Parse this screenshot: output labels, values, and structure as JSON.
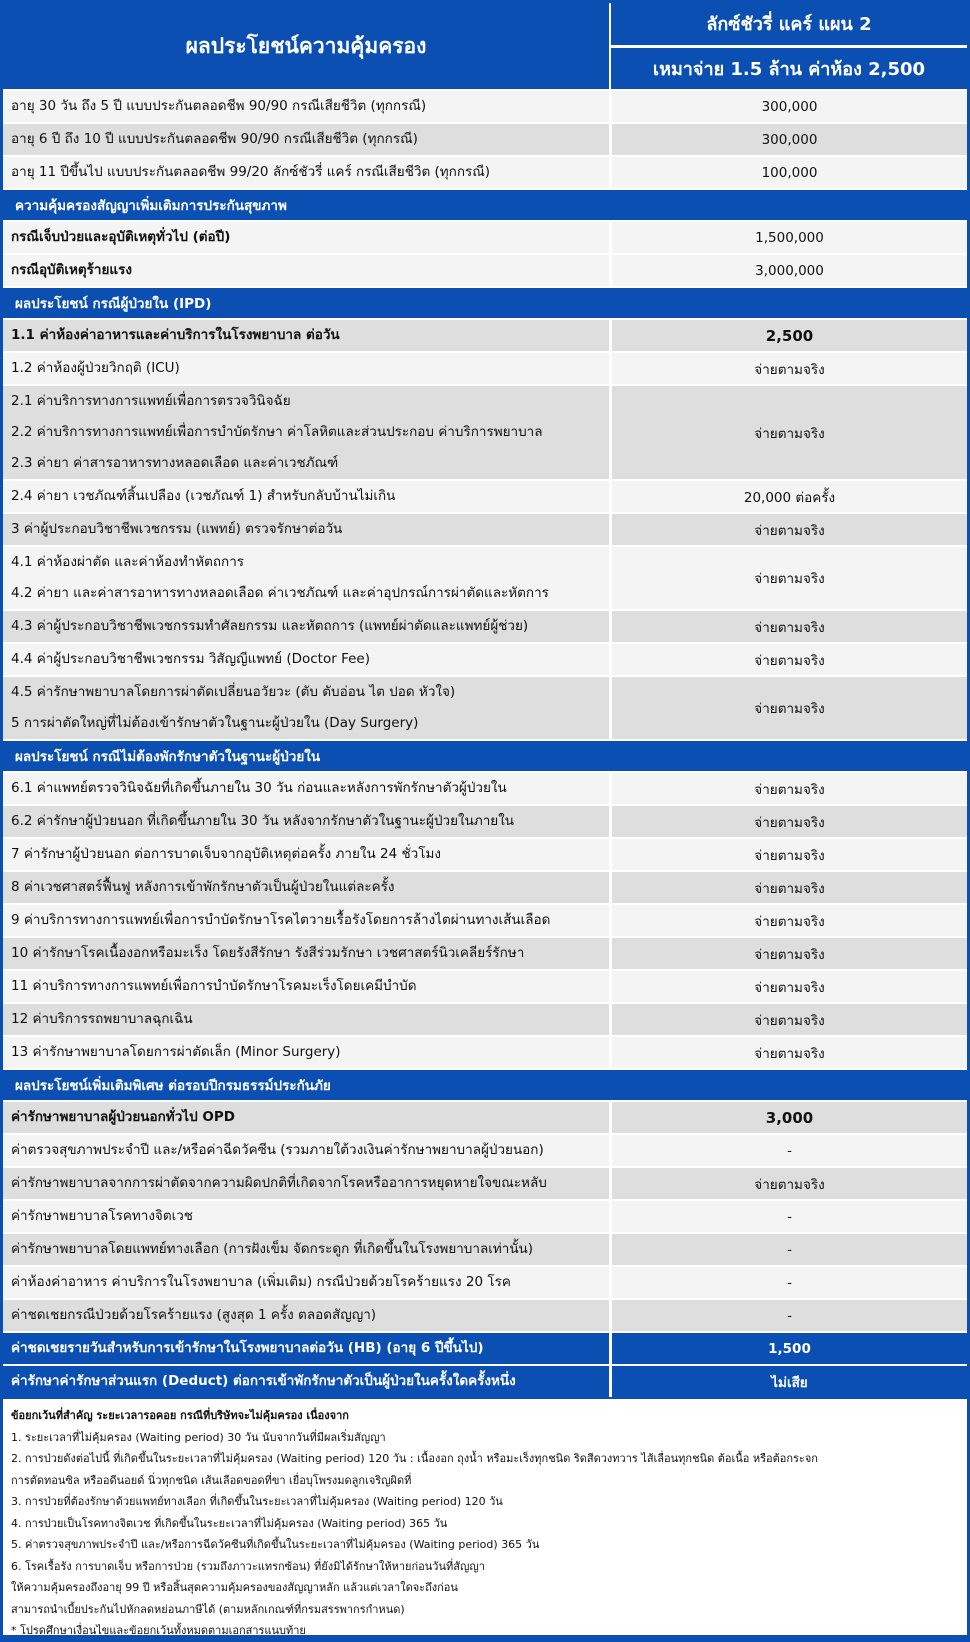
{
  "header": {
    "title": "ผลประโยชน์ความคุ้มครอง",
    "plan": "ลักซ์ชัวรี่ แคร์ แผน 2",
    "plan_detail": "เหมาจ่าย 1.5 ล้าน ค่าห้อง 2,500"
  },
  "blocks": [
    {
      "type": "rows",
      "rows": [
        {
          "lines": [
            "อายุ 30 วัน ถึง 5 ปี แบบประกันตลอดชีพ 90/90 กรณีเสียชีวิต (ทุกกรณี)"
          ],
          "value": "300,000",
          "bg": "a"
        },
        {
          "lines": [
            "อายุ 6 ปี ถึง 10 ปี   แบบประกันตลอดชีพ 90/90 กรณีเสียชีวิต (ทุกกรณี)"
          ],
          "value": "300,000",
          "bg": "b"
        },
        {
          "lines": [
            "อายุ 11 ปีขึ้นไป      แบบประกันตลอดชีพ 99/20 ลักซ์ชัวรี่ แคร์ กรณีเสียชีวิต (ทุกกรณี)"
          ],
          "value": "100,000",
          "bg": "a"
        }
      ]
    },
    {
      "type": "section",
      "title": "ความคุ้มครองสัญญาเพิ่มเติมการประกันสุขภาพ"
    },
    {
      "type": "rows",
      "rows": [
        {
          "lines": [
            "กรณีเจ็บป่วยและอุบัติเหตุทั่วไป (ต่อปี)"
          ],
          "value": "1,500,000",
          "bg": "a",
          "bold_label": true
        },
        {
          "lines": [
            "กรณีอุบัติเหตุร้ายแรง"
          ],
          "value": "3,000,000",
          "bg": "a",
          "bold_label": true
        }
      ]
    },
    {
      "type": "section",
      "title": "ผลประโยชน์ กรณีผู้ป่วยใน (IPD)"
    },
    {
      "type": "rows",
      "rows": [
        {
          "lines": [
            "1.1 ค่าห้องค่าอาหารและค่าบริการในโรงพยาบาล ต่อวัน"
          ],
          "value": "2,500",
          "bg": "b",
          "bold": true
        },
        {
          "lines": [
            "1.2 ค่าห้องผู้ป่วยวิกฤติ (ICU)"
          ],
          "value": "จ่ายตามจริง",
          "bg": "a"
        },
        {
          "lines": [
            "2.1 ค่าบริการทางการแพทย์เพื่อการตรวจวินิจฉัย",
            "2.2 ค่าบริการทางการแพทย์เพื่อการบำบัดรักษา ค่าโลหิตและส่วนประกอบ ค่าบริการพยาบาล",
            "2.3 ค่ายา ค่าสารอาหารทางหลอดเลือด และค่าเวชภัณฑ์"
          ],
          "value": "จ่ายตามจริง",
          "bg": "b"
        },
        {
          "lines": [
            "2.4 ค่ายา เวชภัณฑ์สิ้นเปลือง (เวชภัณฑ์ 1) สำหรับกลับบ้านไม่เกิน"
          ],
          "value": "20,000 ต่อครั้ง",
          "bg": "a"
        },
        {
          "lines": [
            "3 ค่าผู้ประกอบวิชาชีพเวชกรรม (แพทย์) ตรวจรักษาต่อวัน"
          ],
          "value": "จ่ายตามจริง",
          "bg": "b"
        },
        {
          "lines": [
            "4.1 ค่าห้องผ่าตัด และค่าห้องทำหัตถการ",
            "4.2 ค่ายา และค่าสารอาหารทางหลอดเลือด ค่าเวชภัณฑ์ และค่าอุปกรณ์การผ่าตัดและหัตการ"
          ],
          "value": "จ่ายตามจริง",
          "bg": "a"
        },
        {
          "lines": [
            "4.3 ค่าผู้ประกอบวิชาชีพเวชกรรมทำศัลยกรรม และหัตถการ (แพทย์ผ่าตัดและแพทย์ผู้ช่วย)"
          ],
          "value": "จ่ายตามจริง",
          "bg": "b"
        },
        {
          "lines": [
            "4.4 ค่าผู้ประกอบวิชาชีพเวชกรรม วิสัญญีแพทย์ (Doctor Fee)"
          ],
          "value": "จ่ายตามจริง",
          "bg": "a"
        },
        {
          "lines": [
            "4.5 ค่ารักษาพยาบาลโดยการผ่าตัดเปลี่ยนอวัยวะ (ตับ ตับอ่อน ไต ปอด หัวใจ)",
            "5 การผ่าตัดใหญ่ที่ไม่ต้องเข้ารักษาตัวในฐานะผู้ป่วยใน (Day Surgery)"
          ],
          "value": "จ่ายตามจริง",
          "bg": "b"
        }
      ]
    },
    {
      "type": "section",
      "title": "ผลประโยชน์ กรณีไม่ต้องพักรักษาตัวในฐานะผู้ป่วยใน"
    },
    {
      "type": "rows",
      "rows": [
        {
          "lines": [
            "6.1 ค่าแพทย์ตรวจวินิจฉัยที่เกิดขึ้นภายใน 30 วัน ก่อนและหลังการพักรักษาตัวผู้ป่วยใน"
          ],
          "value": "จ่ายตามจริง",
          "bg": "a"
        },
        {
          "lines": [
            "6.2 ค่ารักษาผู้ป่วยนอก ที่เกิดขึ้นภายใน 30 วัน หลังจากรักษาตัวในฐานะผู้ป่วยในภายใน"
          ],
          "value": "จ่ายตามจริง",
          "bg": "b"
        },
        {
          "lines": [
            "7 ค่ารักษาผู้ป่วยนอก ต่อการบาดเจ็บจากอุบัติเหตุต่อครั้ง ภายใน 24 ชั่วโมง"
          ],
          "value": "จ่ายตามจริง",
          "bg": "a"
        },
        {
          "lines": [
            "8 ค่าเวชศาสตร์ฟื้นฟู หลังการเข้าพักรักษาตัวเป็นผู้ป่วยในแต่ละครั้ง"
          ],
          "value": "จ่ายตามจริง",
          "bg": "b"
        },
        {
          "lines": [
            "9 ค่าบริการทางการแพทย์เพื่อการบำบัดรักษาโรคไตวายเรื้อรังโดยการล้างไตผ่านทางเส้นเลือด"
          ],
          "value": "จ่ายตามจริง",
          "bg": "a"
        },
        {
          "lines": [
            "10 ค่ารักษาโรคเนื้องอกหรือมะเร็ง โดยรังสีรักษา รังสีร่วมรักษา เวชศาสตร์นิวเคลียร์รักษา"
          ],
          "value": "จ่ายตามจริง",
          "bg": "b"
        },
        {
          "lines": [
            "11 ค่าบริการทางการแพทย์เพื่อการบำบัดรักษาโรคมะเร็งโดยเคมีบำบัด"
          ],
          "value": "จ่ายตามจริง",
          "bg": "a"
        },
        {
          "lines": [
            "12 ค่าบริการรถพยาบาลฉุกเฉิน"
          ],
          "value": "จ่ายตามจริง",
          "bg": "b"
        },
        {
          "lines": [
            "13 ค่ารักษาพยาบาลโดยการผ่าตัดเล็ก (Minor Surgery)"
          ],
          "value": "จ่ายตามจริง",
          "bg": "a"
        }
      ]
    },
    {
      "type": "section",
      "title": "ผลประโยชน์เพิ่มเติมพิเศษ ต่อรอบปีกรมธรรม์ประกันภัย"
    },
    {
      "type": "rows",
      "rows": [
        {
          "lines": [
            "ค่ารักษาพยาบาลผู้ป่วยนอกทั่วไป OPD"
          ],
          "value": "3,000",
          "bg": "b",
          "bold": true
        },
        {
          "lines": [
            "ค่าตรวจสุขภาพประจำปี และ/หรือค่าฉีดวัคซีน (รวมภายใต้วงเงินค่ารักษาพยาบาลผู้ป่วยนอก)"
          ],
          "value": "-",
          "bg": "a"
        },
        {
          "lines": [
            "ค่ารักษาพยาบาลจากการผ่าตัดจากความผิดปกติที่เกิดจากโรคหรืออาการหยุดหายใจขณะหลับ"
          ],
          "value": "จ่ายตามจริง",
          "bg": "b"
        },
        {
          "lines": [
            "ค่ารักษาพยาบาลโรคทางจิตเวช"
          ],
          "value": "-",
          "bg": "a"
        },
        {
          "lines": [
            "ค่ารักษาพยาบาลโดยแพทย์ทางเลือก (การฝังเข็ม จัดกระดูก ที่เกิดขึ้นในโรงพยาบาลเท่านั้น)"
          ],
          "value": "-",
          "bg": "b"
        },
        {
          "lines": [
            "ค่าห้องค่าอาหาร ค่าบริการในโรงพยาบาล (เพิ่มเติม) กรณีป่วยด้วยโรคร้ายแรง 20 โรค"
          ],
          "value": "-",
          "bg": "a"
        },
        {
          "lines": [
            "ค่าชดเชยกรณีป่วยด้วยโรคร้ายแรง (สูงสุด 1 ครั้ง ตลอดสัญญา)"
          ],
          "value": "-",
          "bg": "b"
        },
        {
          "lines": [
            "ค่าชดเชยรายวันสำหรับการเข้ารักษาในโรงพยาบาลต่อวัน (HB) (อายุ 6 ปีขึ้นไป)"
          ],
          "value": "1,500",
          "bg": "blue"
        },
        {
          "lines": [
            "ค่ารักษาค่ารักษาส่วนแรก (Deduct) ต่อการเข้าพักรักษาตัวเป็นผู้ป่วยในครั้งใดครั้งหนึ่ง"
          ],
          "value": "ไม่เสีย",
          "bg": "blue"
        }
      ]
    }
  ],
  "footer": {
    "title": "ข้อยกเว้นที่สำคัญ ระยะเวลารอคอย กรณีที่บริษัทจะไม่คุ้มครอง เนื่องจาก",
    "lines": [
      "1. ระยะเวลาที่ไม่คุ้มครอง (Waiting period) 30 วัน นับจากวันที่มีผลเริ่มสัญญา",
      "2. การป่วยดังต่อไปนี้ ที่เกิดขึ้นในระยะเวลาที่ไม่คุ้มครอง (Waiting period) 120 วัน : เนื้องอก ถุงน้ำ หรือมะเร็งทุกชนิด ริดสีดวงทวาร ไส้เลื่อนทุกชนิด ต้อเนื้อ หรือต้อกระจก",
      "การตัดทอนซิล หรืออดีนอยด์ นิ่วทุกชนิด เส้นเลือดขอดที่ขา  เยื่อบุโพรงมดลูกเจริญผิดที่",
      "3. การป่วยที่ต้องรักษาด้วยแพทย์ทางเลือก ที่เกิดขึ้นในระยะเวลาที่ไม่คุ้มครอง (Waiting period) 120 วัน",
      "4. การป่วยเป็นโรคทางจิตเวช ที่เกิดขึ้นในระยะเวลาที่ไม่คุ้มครอง (Waiting period) 365 วัน",
      "5. ค่าตรวจสุขภาพประจำปี และ/หรือการฉีดวัคซีนที่เกิดขึ้นในระยะเวลาที่ไม่คุ้มครอง (Waiting period) 365 วัน",
      "6. โรคเรื้อรัง การบาดเจ็บ หรือการป่วย (รวมถึงภาวะแทรกซ้อน) ที่ยังมิได้รักษาให้หายก่อนวันที่สัญญา",
      "ให้ความคุ้มครองถึงอายุ 99 ปี หรือสิ้นสุดความคุ้มครองของสัญญาหลัก แล้วแต่เวลาใดจะถึงก่อน",
      "สามารถนำเบี้ยประกันไปหักลดหย่อนภาษีได้ (ตามหลักเกณฑ์ที่กรมสรรพากรกำหนด)",
      "* โปรดศึกษาเงื่อนไขและข้อยกเว้นทั้งหมดตามเอกสารแนบท้าย"
    ]
  },
  "colors": {
    "brand": "#0b4fb3",
    "row_light": "#f4f4f4",
    "row_grey": "#dedede"
  }
}
